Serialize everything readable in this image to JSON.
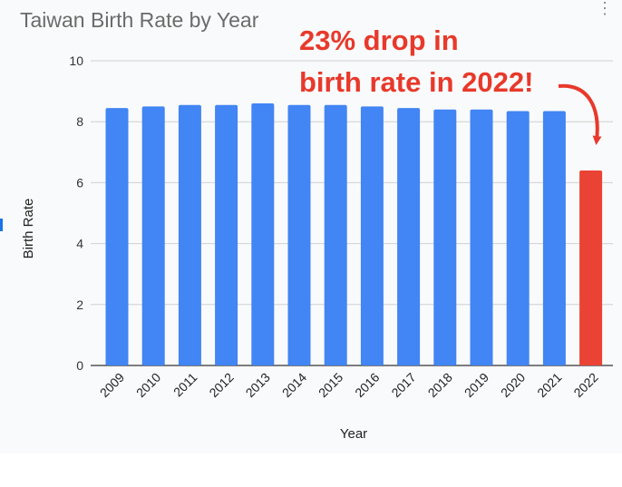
{
  "title": "Taiwan Birth Rate by Year",
  "annotation": {
    "line1": "23% drop in",
    "line2": "birth rate in 2022!"
  },
  "icons": {
    "menu": "more-vert-icon"
  },
  "colors": {
    "bar": "#4285f4",
    "highlight": "#ea4335",
    "annotation": "#e8392b"
  },
  "chart_data": {
    "type": "bar",
    "title": "Taiwan Birth Rate by Year",
    "xlabel": "Year",
    "ylabel": "Birth Rate",
    "categories": [
      "2009",
      "2010",
      "2011",
      "2012",
      "2013",
      "2014",
      "2015",
      "2016",
      "2017",
      "2018",
      "2019",
      "2020",
      "2021",
      "2022"
    ],
    "values": [
      8.45,
      8.5,
      8.55,
      8.55,
      8.6,
      8.55,
      8.55,
      8.5,
      8.45,
      8.4,
      8.4,
      8.35,
      8.35,
      6.4
    ],
    "highlight_index": 13,
    "ylim": [
      0,
      10
    ],
    "yticks": [
      0,
      2,
      4,
      6,
      8,
      10
    ],
    "grid": true,
    "legend": "none"
  }
}
